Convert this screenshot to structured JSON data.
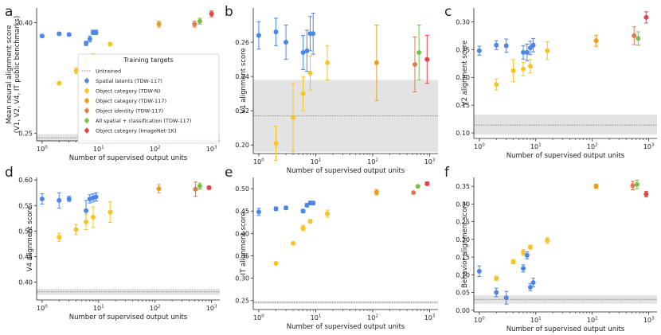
{
  "colors": {
    "spatial": "#4c86e8",
    "object_category_tdw_n": "#f7c424",
    "object_category_tdw_117": "#ee9c1c",
    "object_identity": "#e07a4e",
    "all_spatial_classification": "#79c04a",
    "object_category_imagenet": "#e34545",
    "untrained": "#888888",
    "band": "#e3e3e3"
  },
  "legend": {
    "title": "Training targets",
    "entries": [
      {
        "key": "untrained",
        "label": "Untrained"
      },
      {
        "key": "spatial",
        "label": "Spatial latents (TDW-117)"
      },
      {
        "key": "object_category_tdw_n",
        "label": "Object category (TDW-N)"
      },
      {
        "key": "object_category_tdw_117",
        "label": "Object category (TDW-117)"
      },
      {
        "key": "object_identity",
        "label": "Object identity (TDW-117)"
      },
      {
        "key": "all_spatial_classification",
        "label": "All spatial + classification (TDW-117)"
      },
      {
        "key": "object_category_imagenet",
        "label": "Object category (ImageNet-1K)"
      }
    ]
  },
  "chart_data": [
    {
      "panel": "a",
      "type": "scatter",
      "xscale": "log",
      "xlabel": "Number of supervised output units",
      "ylabel": "Mean neural alignment score\n(V1, V2, V4, IT public benchmarks)",
      "xlim": [
        0.8,
        1400
      ],
      "ylim": [
        0.24,
        0.42
      ],
      "yticks": [
        {
          "v": 0.25,
          "label": "0.25"
        },
        {
          "v": 0.4,
          "label": "0.40"
        }
      ],
      "untrained": {
        "value": 0.244,
        "band": [
          0.239,
          0.249
        ]
      },
      "series": [
        {
          "key": "spatial",
          "points": [
            [
              1,
              0.382,
              0.002
            ],
            [
              2,
              0.385,
              0.002
            ],
            [
              3,
              0.384,
              0.002
            ],
            [
              6,
              0.372,
              0.003
            ],
            [
              7,
              0.378,
              0.004
            ],
            [
              8,
              0.387,
              0.003
            ],
            [
              9,
              0.387,
              0.003
            ]
          ]
        },
        {
          "key": "object_category_tdw_n",
          "points": [
            [
              2,
              0.318,
              0.002
            ],
            [
              4,
              0.335,
              0.004
            ],
            [
              6,
              0.349,
              0.004
            ],
            [
              8,
              0.355,
              0.003
            ],
            [
              16,
              0.371,
              0.002
            ]
          ]
        },
        {
          "key": "object_category_tdw_117",
          "points": [
            [
              117,
              0.398,
              0.004
            ]
          ]
        },
        {
          "key": "object_identity",
          "points": [
            [
              500,
              0.398,
              0.004
            ]
          ]
        },
        {
          "key": "all_spatial_classification",
          "points": [
            [
              620,
              0.402,
              0.004
            ]
          ]
        },
        {
          "key": "object_category_imagenet",
          "points": [
            [
              1000,
              0.412,
              0.004
            ]
          ]
        }
      ]
    },
    {
      "panel": "b",
      "type": "scatter",
      "xscale": "log",
      "xlabel": "Number of supervised output units",
      "ylabel": "V1 alignment score",
      "xlim": [
        0.8,
        1400
      ],
      "ylim": [
        0.195,
        0.28
      ],
      "yticks": [
        {
          "v": 0.2,
          "label": "0.20"
        },
        {
          "v": 0.22,
          "label": "0.22"
        },
        {
          "v": 0.24,
          "label": "0.24"
        },
        {
          "v": 0.26,
          "label": "0.26"
        }
      ],
      "untrained": {
        "value": 0.217,
        "band": [
          0.196,
          0.238
        ]
      },
      "series": [
        {
          "key": "spatial",
          "points": [
            [
              1,
              0.264,
              0.008
            ],
            [
              2,
              0.266,
              0.008
            ],
            [
              3,
              0.26,
              0.01
            ],
            [
              6,
              0.254,
              0.01
            ],
            [
              7,
              0.255,
              0.012
            ],
            [
              8,
              0.265,
              0.01
            ],
            [
              9,
              0.265,
              0.012
            ]
          ]
        },
        {
          "key": "object_category_tdw_n",
          "points": [
            [
              2,
              0.201,
              0.01
            ],
            [
              4,
              0.216,
              0.02
            ],
            [
              6,
              0.23,
              0.01
            ],
            [
              8,
              0.242,
              0.01
            ],
            [
              16,
              0.248,
              0.01
            ]
          ]
        },
        {
          "key": "object_category_tdw_117",
          "points": [
            [
              117,
              0.248,
              0.022
            ]
          ]
        },
        {
          "key": "object_identity",
          "points": [
            [
              550,
              0.247,
              0.016
            ]
          ]
        },
        {
          "key": "all_spatial_classification",
          "points": [
            [
              650,
              0.254,
              0.016
            ]
          ]
        },
        {
          "key": "object_category_imagenet",
          "points": [
            [
              900,
              0.25,
              0.014
            ]
          ]
        }
      ]
    },
    {
      "panel": "c",
      "type": "scatter",
      "xscale": "log",
      "xlabel": "Number of supervised output units",
      "ylabel": "V2 alignment score",
      "xlim": [
        0.8,
        1400
      ],
      "ylim": [
        0.09,
        0.325
      ],
      "yticks": [
        {
          "v": 0.1,
          "label": "0.10"
        },
        {
          "v": 0.15,
          "label": "0.15"
        },
        {
          "v": 0.2,
          "label": "0.20"
        },
        {
          "v": 0.25,
          "label": "0.25"
        },
        {
          "v": 0.3,
          "label": "0.30"
        }
      ],
      "untrained": {
        "value": 0.114,
        "band": [
          0.097,
          0.133
        ]
      },
      "series": [
        {
          "key": "spatial",
          "points": [
            [
              1,
              0.248,
              0.008
            ],
            [
              2,
              0.258,
              0.008
            ],
            [
              3,
              0.257,
              0.012
            ],
            [
              6,
              0.245,
              0.012
            ],
            [
              7,
              0.245,
              0.015
            ],
            [
              8,
              0.253,
              0.012
            ],
            [
              9,
              0.258,
              0.012
            ]
          ]
        },
        {
          "key": "object_category_tdw_n",
          "points": [
            [
              2,
              0.187,
              0.01
            ],
            [
              4,
              0.212,
              0.02
            ],
            [
              6,
              0.215,
              0.012
            ],
            [
              8,
              0.22,
              0.012
            ],
            [
              16,
              0.248,
              0.016
            ]
          ]
        },
        {
          "key": "object_category_tdw_117",
          "points": [
            [
              117,
              0.266,
              0.01
            ]
          ]
        },
        {
          "key": "object_identity",
          "points": [
            [
              550,
              0.275,
              0.016
            ]
          ]
        },
        {
          "key": "all_spatial_classification",
          "points": [
            [
              650,
              0.27,
              0.012
            ]
          ]
        },
        {
          "key": "object_category_imagenet",
          "points": [
            [
              900,
              0.308,
              0.01
            ]
          ]
        }
      ]
    },
    {
      "panel": "d",
      "type": "scatter",
      "xscale": "log",
      "xlabel": "Number of supervised output units",
      "ylabel": "V4 alignment score",
      "xlim": [
        0.8,
        1400
      ],
      "ylim": [
        0.365,
        0.605
      ],
      "yticks": [
        {
          "v": 0.4,
          "label": "0.40"
        },
        {
          "v": 0.45,
          "label": "0.45"
        },
        {
          "v": 0.5,
          "label": "0.50"
        },
        {
          "v": 0.55,
          "label": "0.55"
        },
        {
          "v": 0.6,
          "label": "0.60"
        }
      ],
      "untrained": {
        "value": 0.381,
        "band": [
          0.375,
          0.387
        ]
      },
      "series": [
        {
          "key": "spatial",
          "points": [
            [
              1,
              0.563,
              0.01
            ],
            [
              2,
              0.56,
              0.015
            ],
            [
              3,
              0.563,
              0.005
            ],
            [
              6,
              0.54,
              0.02
            ],
            [
              7,
              0.563,
              0.008
            ],
            [
              8,
              0.565,
              0.008
            ],
            [
              9,
              0.567,
              0.008
            ]
          ]
        },
        {
          "key": "object_category_tdw_n",
          "points": [
            [
              2,
              0.488,
              0.008
            ],
            [
              4,
              0.503,
              0.01
            ],
            [
              6,
              0.518,
              0.015
            ],
            [
              8,
              0.527,
              0.02
            ],
            [
              16,
              0.537,
              0.02
            ]
          ]
        },
        {
          "key": "object_category_tdw_117",
          "points": [
            [
              117,
              0.583,
              0.008
            ]
          ]
        },
        {
          "key": "object_identity",
          "points": [
            [
              520,
              0.582,
              0.014
            ]
          ]
        },
        {
          "key": "all_spatial_classification",
          "points": [
            [
              620,
              0.588,
              0.006
            ]
          ]
        },
        {
          "key": "object_category_imagenet",
          "points": [
            [
              900,
              0.585,
              0.003
            ]
          ]
        }
      ]
    },
    {
      "panel": "e",
      "type": "scatter",
      "xscale": "log",
      "xlabel": "Number of supervised output units",
      "ylabel": "IT alignment score",
      "xlim": [
        0.8,
        1400
      ],
      "ylim": [
        0.23,
        0.525
      ],
      "yticks": [
        {
          "v": 0.25,
          "label": "0.25"
        },
        {
          "v": 0.3,
          "label": "0.30"
        },
        {
          "v": 0.35,
          "label": "0.35"
        },
        {
          "v": 0.4,
          "label": "0.40"
        },
        {
          "v": 0.45,
          "label": "0.45"
        },
        {
          "v": 0.5,
          "label": "0.50"
        }
      ],
      "untrained": {
        "value": 0.246,
        "band": [
          0.243,
          0.249
        ]
      },
      "series": [
        {
          "key": "spatial",
          "points": [
            [
              1,
              0.448,
              0.008
            ],
            [
              2,
              0.455,
              0.004
            ],
            [
              3,
              0.457,
              0.004
            ],
            [
              6,
              0.45,
              0.004
            ],
            [
              7,
              0.463,
              0.004
            ],
            [
              8,
              0.468,
              0.004
            ],
            [
              9,
              0.468,
              0.004
            ]
          ]
        },
        {
          "key": "object_category_tdw_n",
          "points": [
            [
              2,
              0.333,
              0.002
            ],
            [
              4,
              0.378,
              0.002
            ],
            [
              6,
              0.412,
              0.006
            ],
            [
              8,
              0.427,
              0.004
            ],
            [
              16,
              0.444,
              0.008
            ]
          ]
        },
        {
          "key": "object_category_tdw_117",
          "points": [
            [
              117,
              0.492,
              0.006
            ]
          ]
        },
        {
          "key": "object_identity",
          "points": [
            [
              520,
              0.491,
              0.002
            ]
          ]
        },
        {
          "key": "all_spatial_classification",
          "points": [
            [
              620,
              0.505,
              0.002
            ]
          ]
        },
        {
          "key": "object_category_imagenet",
          "points": [
            [
              900,
              0.511,
              0.004
            ]
          ]
        }
      ]
    },
    {
      "panel": "f",
      "type": "scatter",
      "xscale": "log",
      "xlabel": "Number of supervised output units",
      "ylabel": "Behavior alignment score",
      "xlim": [
        0.8,
        1400
      ],
      "ylim": [
        -0.005,
        0.375
      ],
      "yticks": [
        {
          "v": 0.0,
          "label": "0.00"
        },
        {
          "v": 0.05,
          "label": "0.05"
        },
        {
          "v": 0.1,
          "label": "0.10"
        },
        {
          "v": 0.15,
          "label": "0.15"
        },
        {
          "v": 0.2,
          "label": "0.20"
        },
        {
          "v": 0.25,
          "label": "0.25"
        },
        {
          "v": 0.3,
          "label": "0.30"
        },
        {
          "v": 0.35,
          "label": "0.35"
        }
      ],
      "untrained": {
        "value": 0.03,
        "band": [
          0.018,
          0.042
        ]
      },
      "series": [
        {
          "key": "spatial",
          "points": [
            [
              1,
              0.11,
              0.015
            ],
            [
              2,
              0.05,
              0.012
            ],
            [
              3,
              0.035,
              0.018
            ],
            [
              6,
              0.118,
              0.01
            ],
            [
              7,
              0.155,
              0.01
            ],
            [
              8,
              0.065,
              0.01
            ],
            [
              9,
              0.078,
              0.012
            ]
          ]
        },
        {
          "key": "object_category_tdw_n",
          "points": [
            [
              2,
              0.09,
              0.006
            ],
            [
              4,
              0.137,
              0.006
            ],
            [
              6,
              0.163,
              0.008
            ],
            [
              8,
              0.178,
              0.006
            ],
            [
              16,
              0.197,
              0.008
            ]
          ]
        },
        {
          "key": "object_category_tdw_117",
          "points": [
            [
              117,
              0.35,
              0.006
            ]
          ]
        },
        {
          "key": "object_identity",
          "points": [
            [
              520,
              0.352,
              0.012
            ]
          ]
        },
        {
          "key": "all_spatial_classification",
          "points": [
            [
              620,
              0.355,
              0.012
            ]
          ]
        },
        {
          "key": "object_category_imagenet",
          "points": [
            [
              900,
              0.328,
              0.008
            ]
          ]
        }
      ]
    }
  ]
}
